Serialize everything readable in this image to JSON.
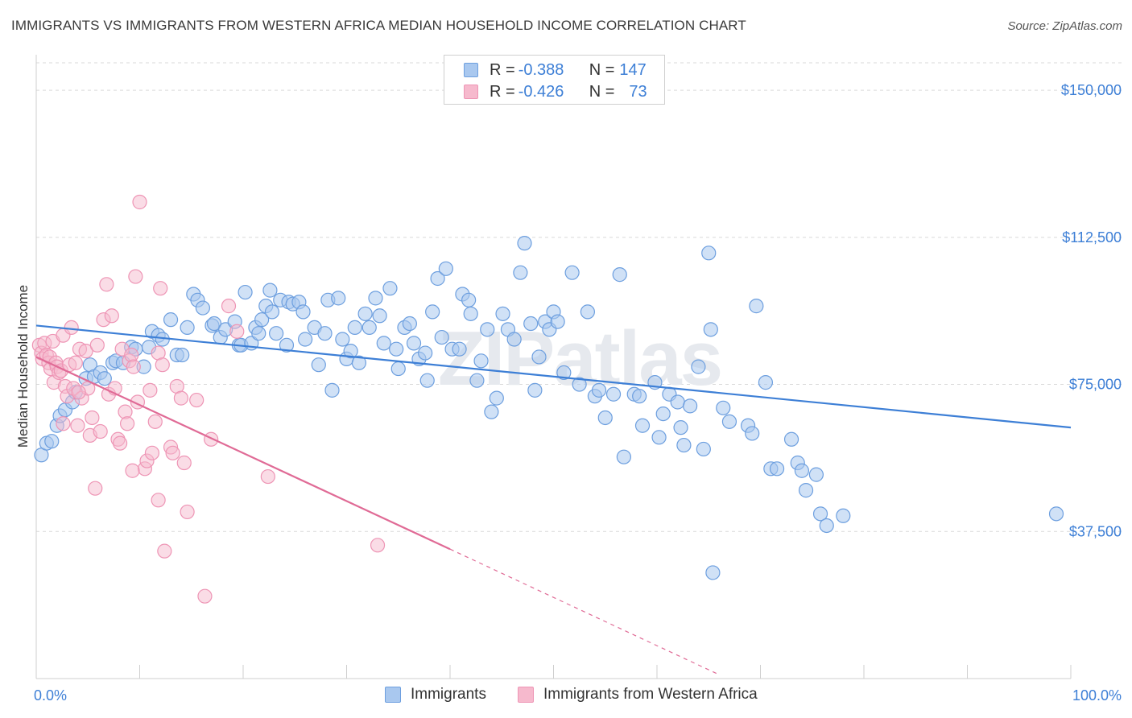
{
  "title": "IMMIGRANTS VS IMMIGRANTS FROM WESTERN AFRICA MEDIAN HOUSEHOLD INCOME CORRELATION CHART",
  "source": "Source: ZipAtlas.com",
  "watermark": "ZIPatlas",
  "colors": {
    "blue": "#3d7fd6",
    "blue_fill": "#a9c8ef",
    "blue_stroke": "#6d9fdf",
    "pink": "#e06b96",
    "pink_fill": "#f6b9cd",
    "pink_stroke": "#ee95b5",
    "grid": "#d9d9d9",
    "tick_label": "#3d7fd6"
  },
  "legend_top": {
    "rows": [
      {
        "r_label": "R = ",
        "r_value": "-0.388",
        "n_label": "N = ",
        "n_value": "147",
        "series": "blue"
      },
      {
        "r_label": "R = ",
        "r_value": "-0.426",
        "n_label": "N = ",
        "n_value": "73",
        "series": "pink"
      }
    ]
  },
  "legend_bottom": [
    {
      "label": "Immigrants",
      "series": "blue"
    },
    {
      "label": "Immigrants from Western Africa",
      "series": "pink"
    }
  ],
  "chart_data": {
    "type": "scatter",
    "title": "IMMIGRANTS VS IMMIGRANTS FROM WESTERN AFRICA MEDIAN HOUSEHOLD INCOME CORRELATION CHART",
    "xlabel": "",
    "ylabel": "Median Household Income",
    "xlim": [
      0,
      100
    ],
    "ylim": [
      0,
      157000
    ],
    "x_tick_labels": [
      "0.0%",
      "100.0%"
    ],
    "y_ticks": [
      37500,
      75000,
      112500,
      150000
    ],
    "y_tick_labels": [
      "$37,500",
      "$75,000",
      "$112,500",
      "$150,000"
    ],
    "grid": true,
    "legend_position": "top-center",
    "series": [
      {
        "name": "Immigrants",
        "color": "#3d7fd6",
        "trend": {
          "x0": 0,
          "y0": 90000,
          "x1": 100,
          "y1": 64000
        },
        "points": [
          [
            0.5,
            57000
          ],
          [
            1.0,
            60000
          ],
          [
            1.5,
            60500
          ],
          [
            2.0,
            64500
          ],
          [
            2.3,
            67000
          ],
          [
            2.8,
            68500
          ],
          [
            3.5,
            70500
          ],
          [
            3.8,
            73000
          ],
          [
            4.8,
            76500
          ],
          [
            5.2,
            80000
          ],
          [
            5.6,
            77000
          ],
          [
            6.2,
            78000
          ],
          [
            6.6,
            76500
          ],
          [
            7.4,
            80500
          ],
          [
            7.7,
            81000
          ],
          [
            8.4,
            80500
          ],
          [
            9.2,
            84500
          ],
          [
            9.6,
            84000
          ],
          [
            10.4,
            79500
          ],
          [
            10.9,
            84500
          ],
          [
            11.2,
            88500
          ],
          [
            11.8,
            87500
          ],
          [
            12.2,
            86500
          ],
          [
            13.0,
            91500
          ],
          [
            13.6,
            82500
          ],
          [
            14.1,
            82500
          ],
          [
            14.6,
            89500
          ],
          [
            15.2,
            98000
          ],
          [
            15.6,
            96500
          ],
          [
            16.1,
            94500
          ],
          [
            17.0,
            90000
          ],
          [
            17.2,
            90500
          ],
          [
            17.8,
            87000
          ],
          [
            18.3,
            89000
          ],
          [
            19.2,
            91000
          ],
          [
            19.6,
            85000
          ],
          [
            19.8,
            85000
          ],
          [
            20.2,
            98500
          ],
          [
            20.8,
            85500
          ],
          [
            21.2,
            89500
          ],
          [
            21.8,
            91500
          ],
          [
            22.2,
            95000
          ],
          [
            22.6,
            99000
          ],
          [
            22.8,
            93500
          ],
          [
            23.2,
            88000
          ],
          [
            23.6,
            96500
          ],
          [
            24.2,
            85000
          ],
          [
            24.4,
            96000
          ],
          [
            24.8,
            95500
          ],
          [
            25.4,
            96000
          ],
          [
            25.8,
            93500
          ],
          [
            26.0,
            86500
          ],
          [
            26.9,
            89500
          ],
          [
            27.3,
            80000
          ],
          [
            27.9,
            88000
          ],
          [
            28.2,
            96500
          ],
          [
            28.6,
            73500
          ],
          [
            29.2,
            97000
          ],
          [
            29.6,
            86500
          ],
          [
            30.0,
            81500
          ],
          [
            30.4,
            83500
          ],
          [
            30.8,
            89500
          ],
          [
            31.2,
            80500
          ],
          [
            31.8,
            93000
          ],
          [
            32.2,
            89500
          ],
          [
            32.8,
            97000
          ],
          [
            33.2,
            92500
          ],
          [
            33.6,
            85500
          ],
          [
            34.2,
            99500
          ],
          [
            34.8,
            84000
          ],
          [
            35.0,
            79000
          ],
          [
            35.6,
            89500
          ],
          [
            36.1,
            90500
          ],
          [
            36.5,
            85500
          ],
          [
            37.0,
            81500
          ],
          [
            37.6,
            83000
          ],
          [
            37.8,
            76000
          ],
          [
            38.3,
            93500
          ],
          [
            38.8,
            102000
          ],
          [
            39.2,
            87000
          ],
          [
            39.6,
            104500
          ],
          [
            40.2,
            84000
          ],
          [
            40.9,
            84000
          ],
          [
            41.2,
            98000
          ],
          [
            41.8,
            96500
          ],
          [
            42.0,
            93000
          ],
          [
            42.6,
            76000
          ],
          [
            43.0,
            81000
          ],
          [
            43.6,
            89000
          ],
          [
            44.0,
            68000
          ],
          [
            44.5,
            71500
          ],
          [
            45.1,
            93000
          ],
          [
            45.6,
            89000
          ],
          [
            46.2,
            86500
          ],
          [
            46.8,
            103500
          ],
          [
            47.2,
            111000
          ],
          [
            47.8,
            90500
          ],
          [
            48.2,
            73500
          ],
          [
            48.6,
            82000
          ],
          [
            49.2,
            91000
          ],
          [
            49.6,
            89000
          ],
          [
            50.0,
            93500
          ],
          [
            50.4,
            91000
          ],
          [
            51.0,
            78000
          ],
          [
            51.8,
            103500
          ],
          [
            52.5,
            75000
          ],
          [
            53.3,
            93500
          ],
          [
            54.0,
            72000
          ],
          [
            54.4,
            73500
          ],
          [
            55.0,
            66500
          ],
          [
            55.8,
            72500
          ],
          [
            56.4,
            103000
          ],
          [
            57.8,
            72500
          ],
          [
            58.3,
            72000
          ],
          [
            58.6,
            64500
          ],
          [
            59.8,
            75500
          ],
          [
            60.2,
            61500
          ],
          [
            60.6,
            67500
          ],
          [
            61.2,
            72500
          ],
          [
            62.0,
            70500
          ],
          [
            62.3,
            64000
          ],
          [
            62.6,
            59500
          ],
          [
            63.2,
            69500
          ],
          [
            64.0,
            79500
          ],
          [
            64.5,
            58500
          ],
          [
            65.0,
            108500
          ],
          [
            65.2,
            89000
          ],
          [
            66.4,
            69000
          ],
          [
            67.0,
            65500
          ],
          [
            68.8,
            64500
          ],
          [
            69.2,
            62500
          ],
          [
            69.6,
            95000
          ],
          [
            70.5,
            75500
          ],
          [
            71.0,
            53500
          ],
          [
            71.6,
            53500
          ],
          [
            73.0,
            61000
          ],
          [
            73.6,
            55000
          ],
          [
            74.0,
            53000
          ],
          [
            74.4,
            48000
          ],
          [
            75.4,
            52000
          ],
          [
            75.8,
            42000
          ],
          [
            76.4,
            39000
          ],
          [
            78.0,
            41500
          ],
          [
            98.6,
            42000
          ],
          [
            65.4,
            27000
          ],
          [
            56.8,
            56500
          ],
          [
            21.5,
            88000
          ]
        ]
      },
      {
        "name": "Immigrants from Western Africa",
        "color": "#e06b96",
        "trend": {
          "x0": 0,
          "y0": 82000,
          "x1": 40,
          "y1": 33000
        },
        "trend_dashed": {
          "x0": 40,
          "y0": 33000,
          "x1": 66,
          "y1": 1000
        },
        "points": [
          [
            0.3,
            85000
          ],
          [
            0.5,
            83000
          ],
          [
            0.6,
            81500
          ],
          [
            0.8,
            85500
          ],
          [
            1.0,
            82500
          ],
          [
            1.2,
            80500
          ],
          [
            1.3,
            82000
          ],
          [
            1.4,
            79000
          ],
          [
            1.6,
            86000
          ],
          [
            1.7,
            75500
          ],
          [
            1.9,
            80500
          ],
          [
            2.0,
            79500
          ],
          [
            2.2,
            78000
          ],
          [
            2.4,
            78500
          ],
          [
            2.6,
            87500
          ],
          [
            2.8,
            74500
          ],
          [
            3.0,
            72000
          ],
          [
            3.2,
            80000
          ],
          [
            3.4,
            89500
          ],
          [
            3.6,
            74000
          ],
          [
            3.8,
            80500
          ],
          [
            4.0,
            64500
          ],
          [
            4.2,
            84000
          ],
          [
            4.4,
            71500
          ],
          [
            4.8,
            83500
          ],
          [
            5.0,
            74000
          ],
          [
            5.2,
            62000
          ],
          [
            5.4,
            66500
          ],
          [
            5.7,
            48500
          ],
          [
            5.9,
            85000
          ],
          [
            6.2,
            63000
          ],
          [
            6.5,
            91500
          ],
          [
            6.8,
            100500
          ],
          [
            7.0,
            72500
          ],
          [
            7.3,
            92500
          ],
          [
            7.6,
            74000
          ],
          [
            7.9,
            61000
          ],
          [
            8.1,
            60000
          ],
          [
            8.3,
            84000
          ],
          [
            8.6,
            68000
          ],
          [
            8.8,
            65000
          ],
          [
            9.0,
            81000
          ],
          [
            9.2,
            82500
          ],
          [
            9.4,
            79500
          ],
          [
            9.6,
            102500
          ],
          [
            9.8,
            70500
          ],
          [
            10.0,
            121500
          ],
          [
            10.5,
            53500
          ],
          [
            10.7,
            55500
          ],
          [
            11.0,
            73500
          ],
          [
            11.2,
            57500
          ],
          [
            11.5,
            65500
          ],
          [
            11.8,
            83000
          ],
          [
            12.0,
            99500
          ],
          [
            12.2,
            80000
          ],
          [
            11.8,
            45500
          ],
          [
            12.4,
            32500
          ],
          [
            13.0,
            59000
          ],
          [
            13.2,
            57500
          ],
          [
            13.6,
            74500
          ],
          [
            14.0,
            71500
          ],
          [
            14.3,
            55000
          ],
          [
            14.6,
            42500
          ],
          [
            15.5,
            71000
          ],
          [
            16.3,
            21000
          ],
          [
            16.9,
            61000
          ],
          [
            18.6,
            95000
          ],
          [
            19.4,
            88500
          ],
          [
            22.4,
            51500
          ],
          [
            33.0,
            34000
          ],
          [
            4.1,
            73000
          ],
          [
            2.6,
            65000
          ],
          [
            9.3,
            53000
          ]
        ]
      }
    ]
  }
}
